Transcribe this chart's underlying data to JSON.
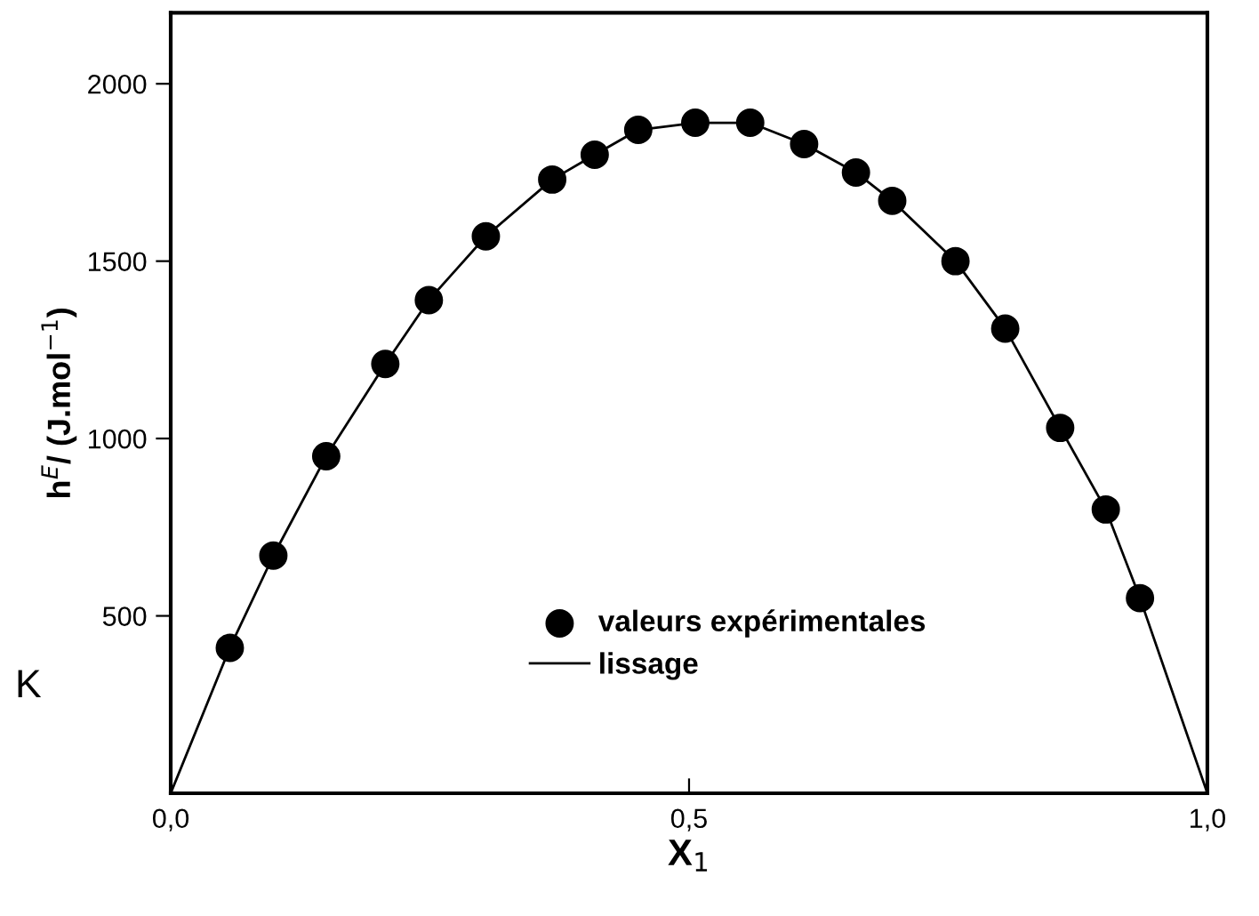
{
  "chart_data": {
    "type": "scatter",
    "xlabel": "X$_{1}$",
    "ylabel": "h$^{E}$/ (J.mol$^{−1}$)",
    "annotations": [
      "K"
    ],
    "xlim": [
      0,
      1
    ],
    "ylim": [
      0,
      2200
    ],
    "xticks": [
      {
        "value": 0,
        "label": "0,0"
      },
      {
        "value": 0.5,
        "label": "0,5"
      },
      {
        "value": 1,
        "label": "1,0"
      }
    ],
    "yticks": [
      500,
      1000,
      1500,
      2000
    ],
    "grid": false,
    "legend": "bottom right",
    "series": [
      {
        "name": "valeurs expérimentales",
        "marker": "circle",
        "color": "#000000",
        "x": [
          0.057,
          0.099,
          0.15,
          0.207,
          0.249,
          0.304,
          0.368,
          0.409,
          0.451,
          0.506,
          0.559,
          0.611,
          0.661,
          0.696,
          0.757,
          0.805,
          0.858,
          0.902,
          0.935
        ],
        "values": [
          410,
          670,
          950,
          1210,
          1390,
          1570,
          1730,
          1800,
          1870,
          1890,
          1890,
          1830,
          1750,
          1670,
          1500,
          1310,
          1030,
          800,
          550
        ]
      },
      {
        "name": "lissage",
        "type": "line",
        "marker": "none",
        "line_style": "solid",
        "color": "#000000",
        "x": [
          0,
          0.057,
          0.099,
          0.15,
          0.207,
          0.249,
          0.304,
          0.368,
          0.409,
          0.451,
          0.506,
          0.559,
          0.611,
          0.661,
          0.696,
          0.757,
          0.805,
          0.858,
          0.902,
          0.935,
          1
        ],
        "values": [
          0,
          410,
          670,
          950,
          1210,
          1390,
          1570,
          1730,
          1800,
          1870,
          1890,
          1890,
          1830,
          1750,
          1670,
          1500,
          1310,
          1030,
          800,
          550,
          0
        ]
      }
    ]
  }
}
